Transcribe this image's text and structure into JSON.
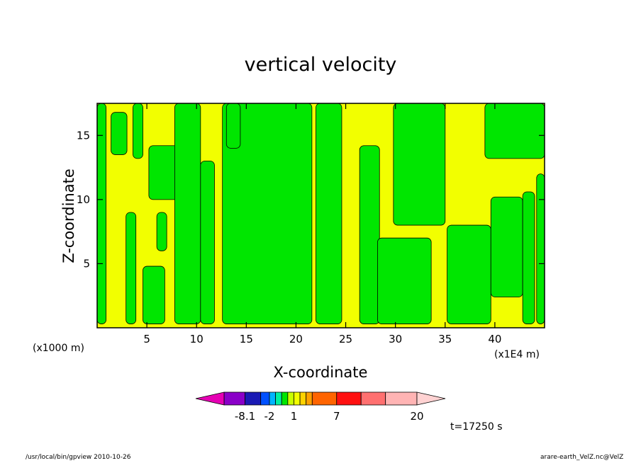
{
  "title": "vertical velocity",
  "chart_data": {
    "type": "heatmap",
    "title": "vertical velocity",
    "xlabel": "X-coordinate",
    "ylabel": "Z-coordinate",
    "x_unit_left": "(x1000 m)",
    "x_unit_right": "(x1E4 m)",
    "xlim": [
      0,
      45
    ],
    "ylim": [
      0,
      17.5
    ],
    "x_ticks": [
      "5",
      "10",
      "15",
      "20",
      "25",
      "30",
      "35",
      "40"
    ],
    "y_ticks": [
      "5",
      "10",
      "15"
    ],
    "background_level_color": "#f2ff00",
    "anomaly_level_color": "#00e600",
    "green_regions": [
      {
        "x": [
          12.6,
          21.6
        ],
        "z": [
          0.3,
          17.5
        ]
      },
      {
        "x": [
          22.0,
          24.6
        ],
        "z": [
          0.3,
          17.5
        ]
      },
      {
        "x": [
          26.4,
          28.4
        ],
        "z": [
          0.3,
          14.2
        ]
      },
      {
        "x": [
          29.8,
          35.0
        ],
        "z": [
          8.0,
          17.5
        ]
      },
      {
        "x": [
          28.2,
          33.6
        ],
        "z": [
          0.3,
          7.0
        ]
      },
      {
        "x": [
          35.2,
          39.6
        ],
        "z": [
          0.3,
          8.0
        ]
      },
      {
        "x": [
          39.0,
          45.0
        ],
        "z": [
          13.2,
          17.5
        ]
      },
      {
        "x": [
          39.6,
          42.8
        ],
        "z": [
          2.4,
          10.2
        ]
      },
      {
        "x": [
          42.8,
          44.0
        ],
        "z": [
          0.3,
          10.6
        ]
      },
      {
        "x": [
          44.2,
          45.0
        ],
        "z": [
          0.3,
          12.0
        ]
      },
      {
        "x": [
          0.0,
          0.9
        ],
        "z": [
          0.3,
          17.5
        ]
      },
      {
        "x": [
          1.4,
          3.0
        ],
        "z": [
          13.5,
          16.8
        ]
      },
      {
        "x": [
          2.9,
          3.9
        ],
        "z": [
          0.3,
          9.0
        ]
      },
      {
        "x": [
          3.6,
          4.6
        ],
        "z": [
          13.2,
          17.5
        ]
      },
      {
        "x": [
          4.6,
          6.8
        ],
        "z": [
          0.3,
          4.8
        ]
      },
      {
        "x": [
          5.2,
          9.0
        ],
        "z": [
          10.0,
          14.2
        ]
      },
      {
        "x": [
          7.8,
          10.4
        ],
        "z": [
          0.3,
          17.5
        ]
      },
      {
        "x": [
          6.0,
          7.0
        ],
        "z": [
          6.0,
          9.0
        ]
      },
      {
        "x": [
          10.4,
          11.8
        ],
        "z": [
          0.3,
          13.0
        ]
      },
      {
        "x": [
          13.0,
          14.4
        ],
        "z": [
          14.0,
          17.5
        ]
      }
    ],
    "colorbar": {
      "colors": [
        "#e600b4",
        "#8a00c8",
        "#1a1ab4",
        "#0050ff",
        "#00b4ff",
        "#00f0a0",
        "#00e600",
        "#c8ff00",
        "#f2ff00",
        "#ffd200",
        "#ffa000",
        "#ff6400",
        "#ff1010",
        "#ff7070",
        "#ffb4b4",
        "#ffd2d2"
      ],
      "labels": [
        "-8.1",
        "-2",
        "1",
        "7",
        "20"
      ]
    },
    "time_label": "t=17250 s"
  },
  "footer_left": "/usr/local/bin/gpview 2010-10-26",
  "footer_right": "arare-earth_VelZ.nc@VelZ"
}
